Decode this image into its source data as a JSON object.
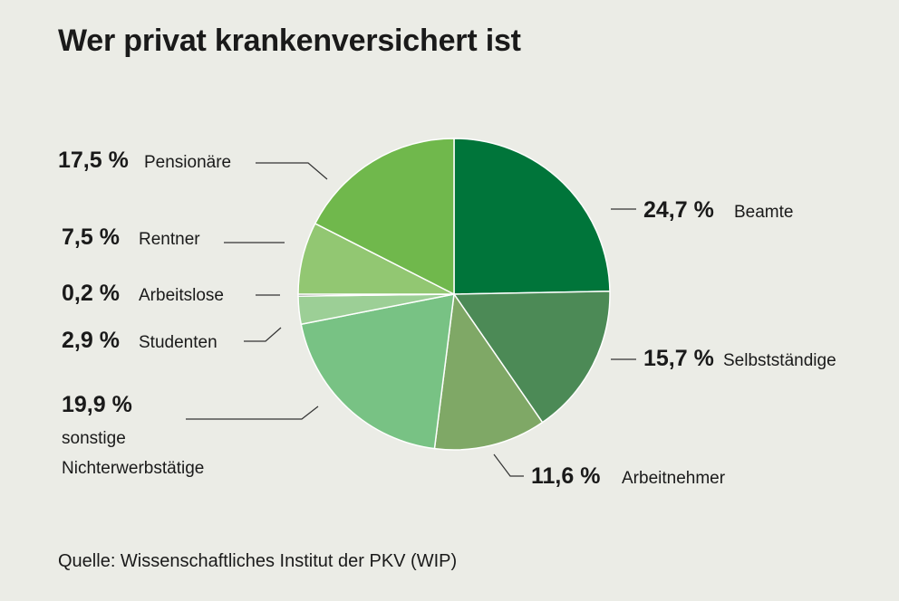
{
  "title": "Wer privat krankenversichert ist",
  "source": "Quelle: Wissenschaftliches Institut der PKV (WIP)",
  "chart_data": {
    "type": "pie",
    "title": "Wer privat krankenversichert ist",
    "start": "12 o'clock, clockwise",
    "slices": [
      {
        "label": "Beamte",
        "value": 24.7,
        "value_text": "24,7 %",
        "color": "#00753a"
      },
      {
        "label": "Selbstständige",
        "value": 15.7,
        "value_text": "15,7 %",
        "color": "#4c8a56"
      },
      {
        "label": "Arbeitnehmer",
        "value": 11.6,
        "value_text": "11,6 %",
        "color": "#7fa866"
      },
      {
        "label": "sonstige Nichterwerbstätige",
        "value": 19.9,
        "value_text": "19,9 %",
        "color": "#78c284",
        "label_lines": [
          "sonstige",
          "Nichterwerbstätige"
        ]
      },
      {
        "label": "Studenten",
        "value": 2.9,
        "value_text": "2,9 %",
        "color": "#9ccf96"
      },
      {
        "label": "Arbeitslose",
        "value": 0.2,
        "value_text": "0,2 %",
        "color": "#3d4a3a"
      },
      {
        "label": "Rentner",
        "value": 7.5,
        "value_text": "7,5 %",
        "color": "#92c772"
      },
      {
        "label": "Pensionäre",
        "value": 17.5,
        "value_text": "17,5 %",
        "color": "#70b84c"
      }
    ]
  }
}
